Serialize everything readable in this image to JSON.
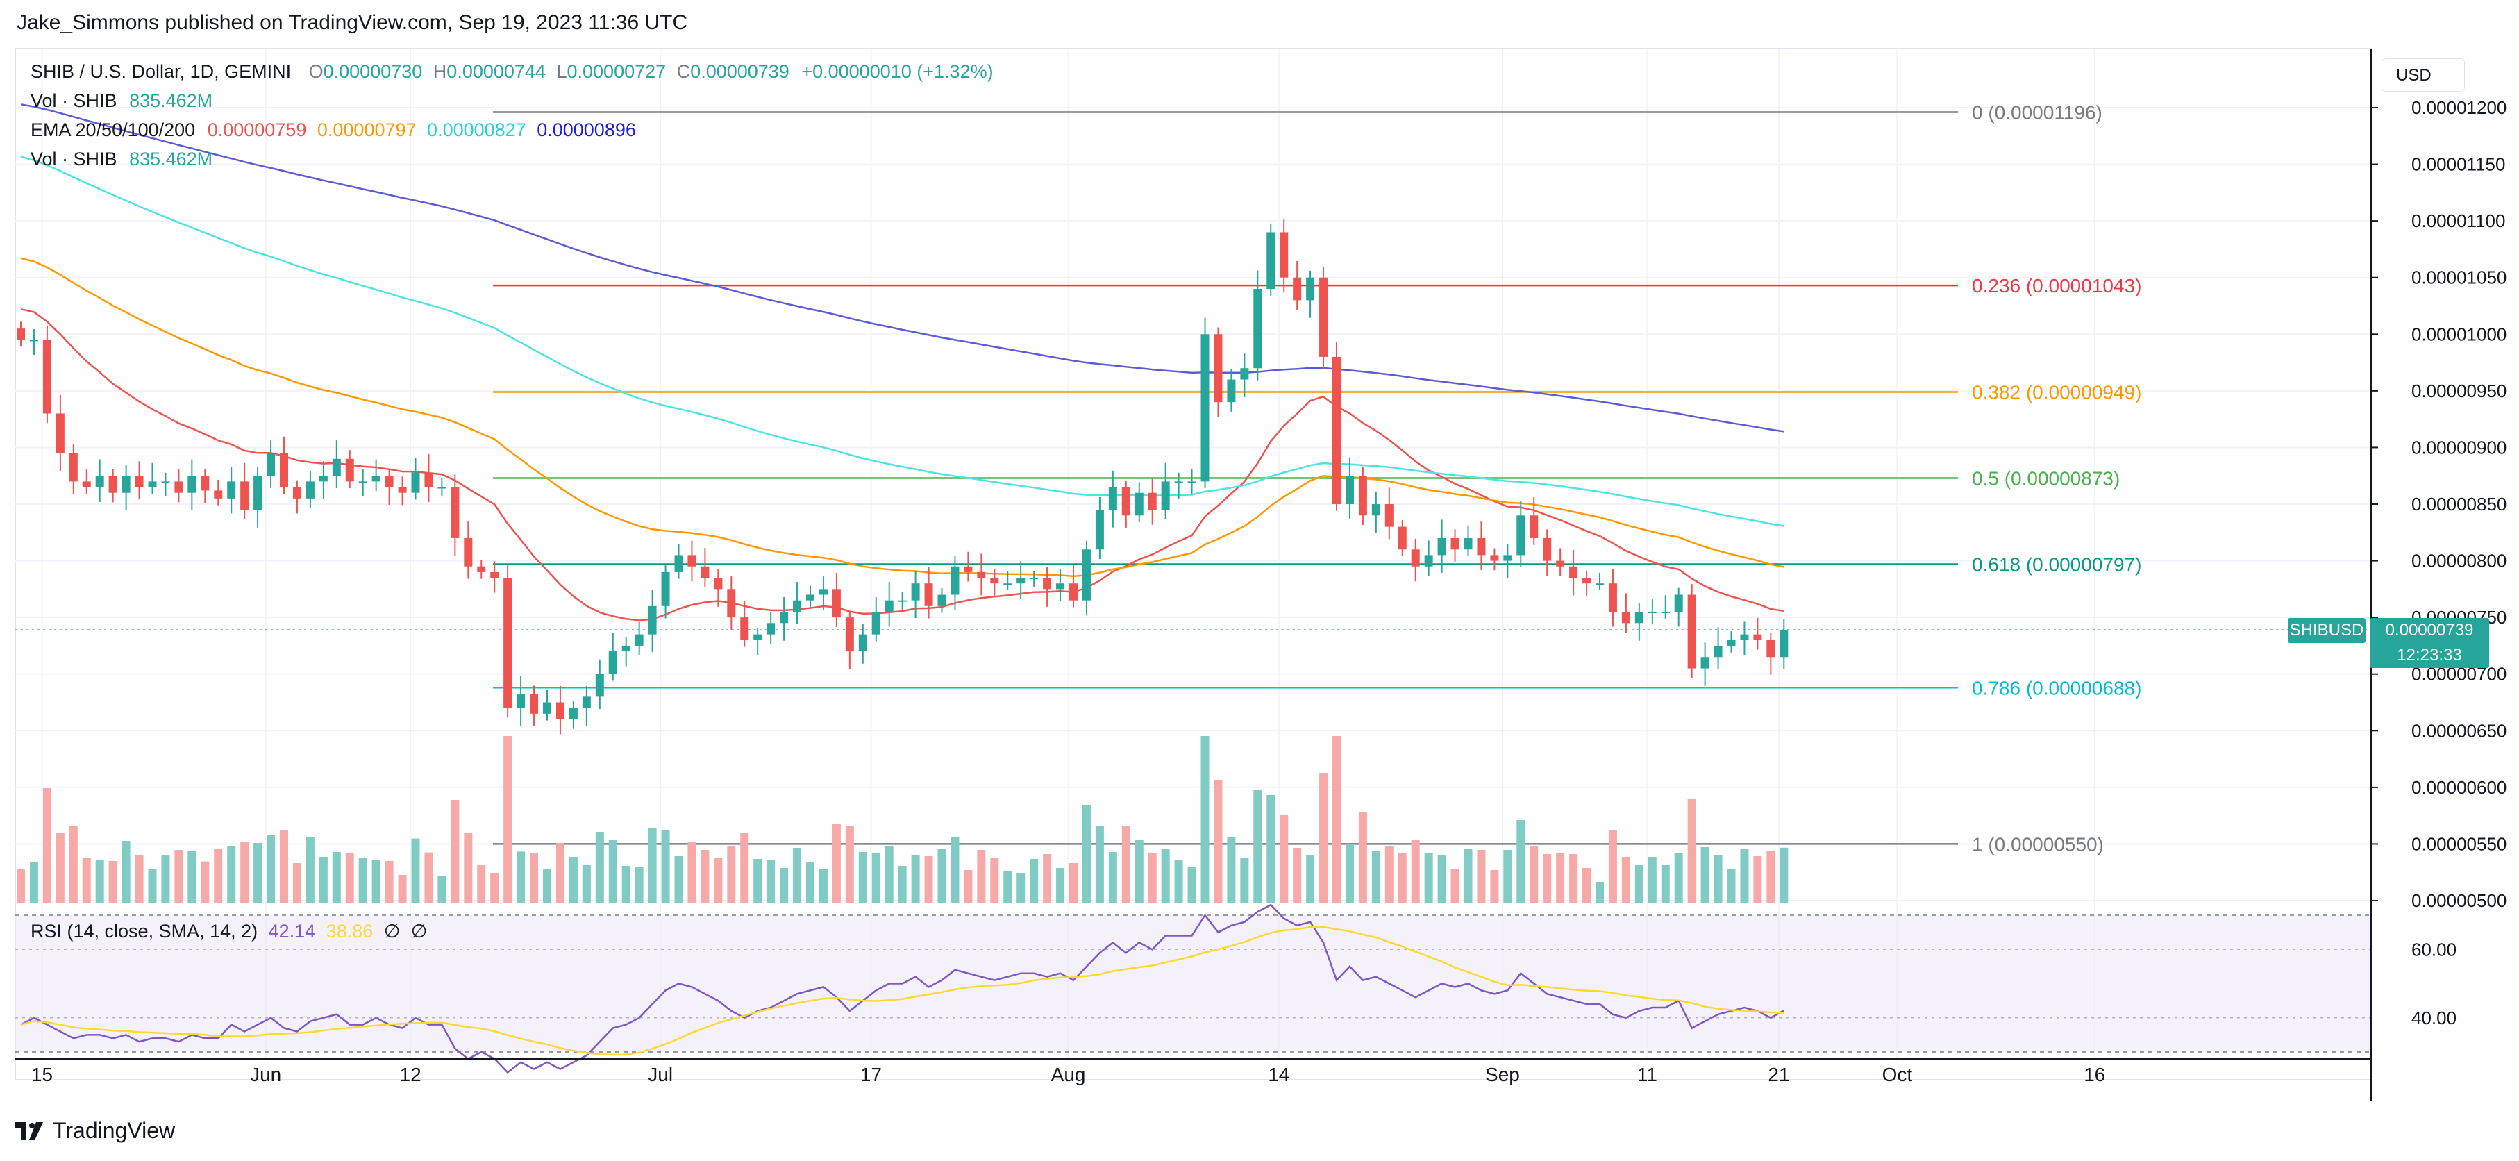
{
  "header": {
    "publisher_text": "Jake_Simmons published on TradingView.com, Sep 19, 2023 11:36 UTC"
  },
  "legend": {
    "symbol": "SHIB / U.S. Dollar, 1D, GEMINI",
    "open_label": "O",
    "open": "0.00000730",
    "high_label": "H",
    "high": "0.00000744",
    "low_label": "L",
    "low": "0.00000727",
    "close_label": "C",
    "close": "0.00000739",
    "change": "+0.00000010 (+1.32%)",
    "vol_label": "Vol · SHIB",
    "vol_value": "835.462M",
    "ema_label": "EMA 20/50/100/200",
    "ema20": "0.00000759",
    "ema50": "0.00000797",
    "ema100": "0.00000827",
    "ema200": "0.00000896",
    "vol2_label": "Vol · SHIB",
    "vol2_value": "835.462M"
  },
  "rsi_legend": {
    "label": "RSI (14, close, SMA, 14, 2)",
    "rsi": "42.14",
    "sma": "38.86",
    "null1": "∅",
    "null2": "∅"
  },
  "currency_button": "USD",
  "price_tag": {
    "symbol": "SHIBUSD",
    "price": "0.00000739",
    "countdown": "12:23:33"
  },
  "footer": {
    "brand": "TradingView"
  },
  "colors": {
    "up": "#26a69a",
    "down": "#ef5350",
    "ema20": "#ef5350",
    "ema50": "#ff9800",
    "ema100": "#4de3e3",
    "ema200": "#5b5bd6",
    "rsi": "#7e57c2",
    "rsi_sma": "#fdd835"
  },
  "chart_data": {
    "type": "candlestick",
    "symbol": "SHIB / U.S. Dollar",
    "y_ticks": [
      "0.00001200",
      "0.00001150",
      "0.00001100",
      "0.00001050",
      "0.00001000",
      "0.00000950",
      "0.00000900",
      "0.00000850",
      "0.00000800",
      "0.00000750",
      "0.00000700",
      "0.00000650",
      "0.00000600",
      "0.00000550",
      "0.00000500"
    ],
    "ylim": [
      5e-06,
      1.22e-05
    ],
    "x_ticks": [
      "15",
      "Jun",
      "12",
      "Jul",
      "17",
      "Aug",
      "14",
      "Sep",
      "11",
      "21",
      "Oct",
      "16"
    ],
    "x_tick_days": [
      0,
      17,
      28,
      47,
      63,
      78,
      94,
      111,
      122,
      132,
      141,
      156
    ],
    "first_day": -10,
    "last_day": 125,
    "fib_levels": [
      {
        "label": "0 (0.00001196)",
        "value": 1.196e-05,
        "color": "#787b86"
      },
      {
        "label": "0.236 (0.00001043)",
        "value": 1.043e-05,
        "color": "#f23645"
      },
      {
        "label": "0.382 (0.00000949)",
        "value": 9.49e-06,
        "color": "#ff9800"
      },
      {
        "label": "0.5 (0.00000873)",
        "value": 8.73e-06,
        "color": "#4caf50"
      },
      {
        "label": "0.618 (0.00000797)",
        "value": 7.97e-06,
        "color": "#089981"
      },
      {
        "label": "0.786 (0.00000688)",
        "value": 6.88e-06,
        "color": "#00bcd4"
      },
      {
        "label": "1 (0.00000550)",
        "value": 5.5e-06,
        "color": "#787b86"
      }
    ],
    "close": [
      9.95,
      9.95,
      9.3,
      8.95,
      8.7,
      8.65,
      8.75,
      8.6,
      8.75,
      8.65,
      8.7,
      8.7,
      8.6,
      8.75,
      8.62,
      8.55,
      8.7,
      8.45,
      8.75,
      8.95,
      8.65,
      8.55,
      8.7,
      8.75,
      8.9,
      8.7,
      8.7,
      8.75,
      8.65,
      8.6,
      8.78,
      8.65,
      8.65,
      8.2,
      7.95,
      7.9,
      7.85,
      6.7,
      6.82,
      6.65,
      6.75,
      6.6,
      6.7,
      6.8,
      7.0,
      7.2,
      7.25,
      7.35,
      7.6,
      7.9,
      8.05,
      7.95,
      7.85,
      7.75,
      7.5,
      7.3,
      7.35,
      7.45,
      7.55,
      7.65,
      7.7,
      7.75,
      7.5,
      7.2,
      7.35,
      7.55,
      7.65,
      7.65,
      7.8,
      7.6,
      7.7,
      7.95,
      7.9,
      7.85,
      7.8,
      7.8,
      7.85,
      7.85,
      7.75,
      7.8,
      7.65,
      8.1,
      8.45,
      8.65,
      8.4,
      8.6,
      8.45,
      8.7,
      8.7,
      8.7,
      10.0,
      9.4,
      9.6,
      9.7,
      10.4,
      10.9,
      10.5,
      10.3,
      10.5,
      9.8,
      8.5,
      8.75,
      8.4,
      8.5,
      8.3,
      8.1,
      7.95,
      8.05,
      8.2,
      8.1,
      8.2,
      8.05,
      8.0,
      8.05,
      8.4,
      8.2,
      8.0,
      7.95,
      7.85,
      7.8,
      7.8,
      7.55,
      7.45,
      7.55,
      7.55,
      7.55,
      7.7,
      7.05,
      7.15,
      7.25,
      7.3,
      7.35,
      7.3,
      7.15,
      7.39
    ],
    "rsi": [
      38,
      40,
      38,
      36,
      34,
      35,
      35,
      34,
      35,
      33,
      34,
      34,
      33,
      35,
      34,
      34,
      38,
      36,
      38,
      40,
      37,
      36,
      39,
      40,
      41,
      38,
      38,
      40,
      38,
      37,
      40,
      38,
      38,
      31,
      28,
      30,
      28,
      24,
      27,
      25,
      27,
      25,
      27,
      29,
      33,
      37,
      38,
      40,
      44,
      48,
      50,
      49,
      47,
      45,
      42,
      40,
      42,
      43,
      45,
      47,
      48,
      49,
      46,
      42,
      45,
      48,
      50,
      50,
      52,
      49,
      51,
      54,
      53,
      52,
      51,
      52,
      53,
      53,
      52,
      53,
      51,
      55,
      59,
      62,
      59,
      62,
      60,
      64,
      64,
      64,
      70,
      65,
      67,
      68,
      71,
      73,
      69,
      67,
      68,
      62,
      51,
      55,
      51,
      52,
      50,
      48,
      46,
      48,
      50,
      49,
      50,
      48,
      47,
      48,
      53,
      50,
      47,
      46,
      45,
      44,
      44,
      41,
      40,
      42,
      43,
      43,
      45,
      37,
      39,
      41,
      42,
      43,
      42,
      40,
      42.14
    ],
    "rsi_ylim": [
      30,
      70
    ],
    "rsi_ticks": [
      "60.00",
      "40.00"
    ]
  }
}
